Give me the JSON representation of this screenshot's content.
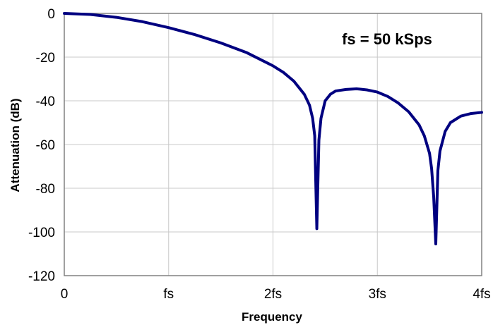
{
  "chart_data": {
    "type": "line",
    "title": "",
    "xlabel": "Frequency",
    "ylabel": "Attenuation (dB)",
    "annotation": "fs = 50 kSps",
    "xlim": [
      0,
      4
    ],
    "ylim": [
      -120,
      0
    ],
    "x_ticks": [
      {
        "value": 0,
        "label": "0"
      },
      {
        "value": 1,
        "label": "fs"
      },
      {
        "value": 2,
        "label": "2fs"
      },
      {
        "value": 3,
        "label": "3fs"
      },
      {
        "value": 4,
        "label": "4fs"
      }
    ],
    "y_ticks": [
      {
        "value": 0,
        "label": "0"
      },
      {
        "value": -20,
        "label": "-20"
      },
      {
        "value": -40,
        "label": "-40"
      },
      {
        "value": -60,
        "label": "-60"
      },
      {
        "value": -80,
        "label": "-80"
      },
      {
        "value": -100,
        "label": "-100"
      },
      {
        "value": -120,
        "label": "-120"
      }
    ],
    "grid": true,
    "series": [
      {
        "color": "#000080",
        "x": [
          0,
          0.25,
          0.5,
          0.75,
          1.0,
          1.25,
          1.5,
          1.75,
          2.0,
          2.1,
          2.2,
          2.3,
          2.35,
          2.38,
          2.4,
          2.42,
          2.44,
          2.46,
          2.5,
          2.55,
          2.6,
          2.7,
          2.8,
          2.9,
          3.0,
          3.1,
          3.2,
          3.3,
          3.4,
          3.45,
          3.5,
          3.52,
          3.54,
          3.56,
          3.58,
          3.6,
          3.65,
          3.7,
          3.8,
          3.9,
          4.0
        ],
        "y": [
          0,
          -0.5,
          -1.8,
          -3.8,
          -6.5,
          -9.7,
          -13.5,
          -18.0,
          -24.0,
          -27.0,
          -31.0,
          -37.0,
          -42.0,
          -48.0,
          -56.0,
          -98.5,
          -58.0,
          -48.0,
          -40.0,
          -37.0,
          -35.5,
          -34.8,
          -34.5,
          -35.0,
          -36.0,
          -38.0,
          -41.0,
          -45.0,
          -51.0,
          -56.0,
          -64.0,
          -71.0,
          -84.0,
          -105.5,
          -72.0,
          -63.0,
          -54.0,
          -50.0,
          -47.0,
          -45.8,
          -45.3
        ]
      }
    ]
  }
}
